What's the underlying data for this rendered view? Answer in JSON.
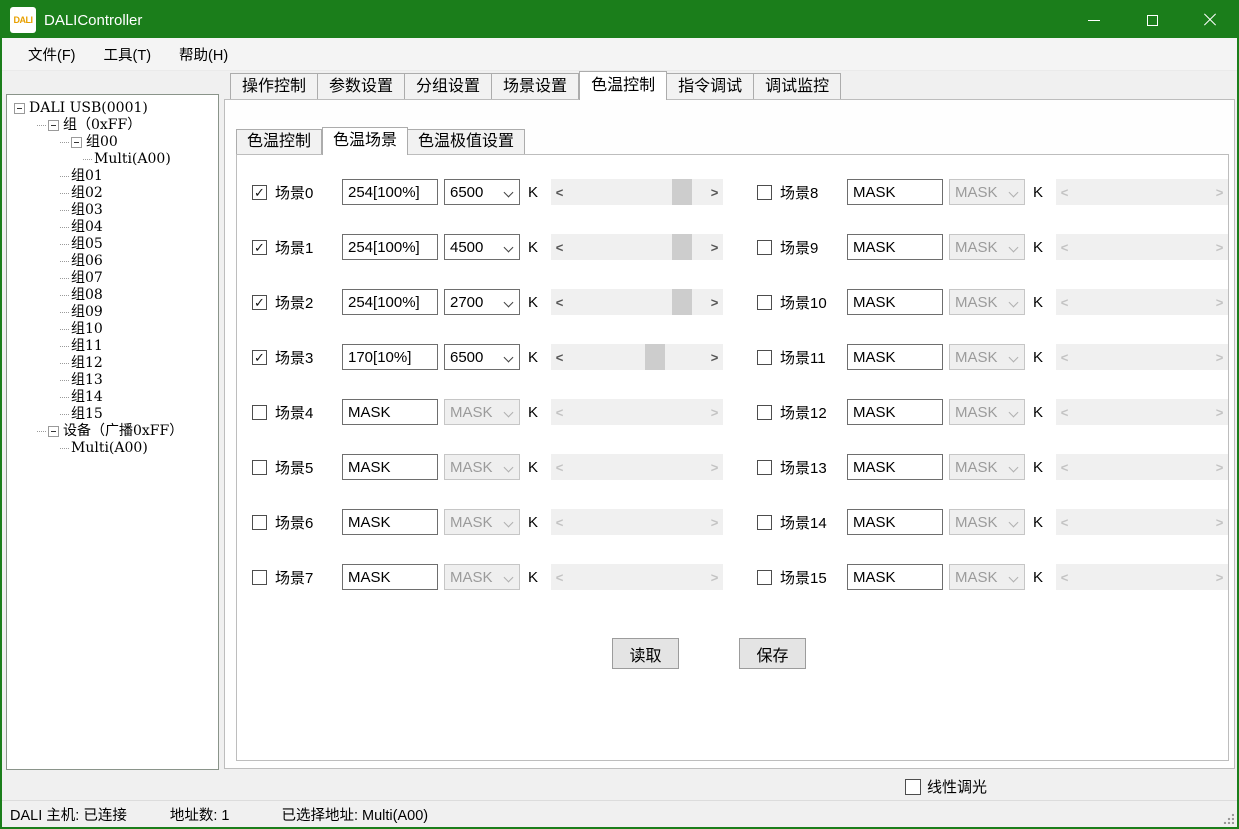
{
  "colors": {
    "titlebar_green": "#1b7e1b",
    "window_border_green": "#1b7e1b",
    "scrollbar_track": "#f0f0f0",
    "scrollbar_thumb": "#cdcdcd",
    "disabled_text": "#9b9b9b"
  },
  "window": {
    "title": "DALIController",
    "icon_text": "DALI",
    "controls": [
      {
        "name": "minimize"
      },
      {
        "name": "maximize"
      },
      {
        "name": "close"
      }
    ]
  },
  "menu": {
    "items": [
      "文件(F)",
      "工具(T)",
      "帮助(H)"
    ]
  },
  "tree": {
    "items": [
      {
        "label": "DALI USB(0001)",
        "level": 0,
        "expander": true
      },
      {
        "label": "组（0xFF）",
        "level": 1,
        "expander": true
      },
      {
        "label": "组00",
        "level": 2,
        "expander": true
      },
      {
        "label": "Multi(A00)",
        "level": 3,
        "expander": false
      },
      {
        "label": "组01",
        "level": 2,
        "expander": false
      },
      {
        "label": "组02",
        "level": 2,
        "expander": false
      },
      {
        "label": "组03",
        "level": 2,
        "expander": false
      },
      {
        "label": "组04",
        "level": 2,
        "expander": false
      },
      {
        "label": "组05",
        "level": 2,
        "expander": false
      },
      {
        "label": "组06",
        "level": 2,
        "expander": false
      },
      {
        "label": "组07",
        "level": 2,
        "expander": false
      },
      {
        "label": "组08",
        "level": 2,
        "expander": false
      },
      {
        "label": "组09",
        "level": 2,
        "expander": false
      },
      {
        "label": "组10",
        "level": 2,
        "expander": false
      },
      {
        "label": "组11",
        "level": 2,
        "expander": false
      },
      {
        "label": "组12",
        "level": 2,
        "expander": false
      },
      {
        "label": "组13",
        "level": 2,
        "expander": false
      },
      {
        "label": "组14",
        "level": 2,
        "expander": false
      },
      {
        "label": "组15",
        "level": 2,
        "expander": false
      },
      {
        "label": "设备（广播0xFF）",
        "level": 1,
        "expander": true
      },
      {
        "label": "Multi(A00)",
        "level": 2,
        "expander": false
      }
    ]
  },
  "tabs": {
    "items": [
      "操作控制",
      "参数设置",
      "分组设置",
      "场景设置",
      "色温控制",
      "指令调试",
      "调试监控"
    ],
    "selected_index": 4
  },
  "subtabs": {
    "items": [
      "色温控制",
      "色温场景",
      "色温极值设置"
    ],
    "selected_index": 1
  },
  "unit_label": "K",
  "icons": {
    "scrollbar_left": "<",
    "scrollbar_right": ">",
    "checkmark": "✓"
  },
  "scenes": [
    {
      "label": "场景0",
      "checked": true,
      "level": "254[100%]",
      "temp": "6500",
      "enabled": true,
      "slider_pct": 88
    },
    {
      "label": "场景1",
      "checked": true,
      "level": "254[100%]",
      "temp": "4500",
      "enabled": true,
      "slider_pct": 88
    },
    {
      "label": "场景2",
      "checked": true,
      "level": "254[100%]",
      "temp": "2700",
      "enabled": true,
      "slider_pct": 88
    },
    {
      "label": "场景3",
      "checked": true,
      "level": "170[10%]",
      "temp": "6500",
      "enabled": true,
      "slider_pct": 65
    },
    {
      "label": "场景4",
      "checked": false,
      "level": "MASK",
      "temp": "MASK",
      "enabled": false,
      "slider_pct": null
    },
    {
      "label": "场景5",
      "checked": false,
      "level": "MASK",
      "temp": "MASK",
      "enabled": false,
      "slider_pct": null
    },
    {
      "label": "场景6",
      "checked": false,
      "level": "MASK",
      "temp": "MASK",
      "enabled": false,
      "slider_pct": null
    },
    {
      "label": "场景7",
      "checked": false,
      "level": "MASK",
      "temp": "MASK",
      "enabled": false,
      "slider_pct": null
    },
    {
      "label": "场景8",
      "checked": false,
      "level": "MASK",
      "temp": "MASK",
      "enabled": false,
      "slider_pct": null
    },
    {
      "label": "场景9",
      "checked": false,
      "level": "MASK",
      "temp": "MASK",
      "enabled": false,
      "slider_pct": null
    },
    {
      "label": "场景10",
      "checked": false,
      "level": "MASK",
      "temp": "MASK",
      "enabled": false,
      "slider_pct": null
    },
    {
      "label": "场景11",
      "checked": false,
      "level": "MASK",
      "temp": "MASK",
      "enabled": false,
      "slider_pct": null
    },
    {
      "label": "场景12",
      "checked": false,
      "level": "MASK",
      "temp": "MASK",
      "enabled": false,
      "slider_pct": null
    },
    {
      "label": "场景13",
      "checked": false,
      "level": "MASK",
      "temp": "MASK",
      "enabled": false,
      "slider_pct": null
    },
    {
      "label": "场景14",
      "checked": false,
      "level": "MASK",
      "temp": "MASK",
      "enabled": false,
      "slider_pct": null
    },
    {
      "label": "场景15",
      "checked": false,
      "level": "MASK",
      "temp": "MASK",
      "enabled": false,
      "slider_pct": null
    }
  ],
  "buttons": {
    "read": "读取",
    "save": "保存"
  },
  "linear_dimming": {
    "label": "线性调光",
    "checked": false
  },
  "statusbar": {
    "host": "DALI 主机: 已连接",
    "address_count": "地址数: 1",
    "selected_address": "已选择地址: Multi(A00)"
  }
}
